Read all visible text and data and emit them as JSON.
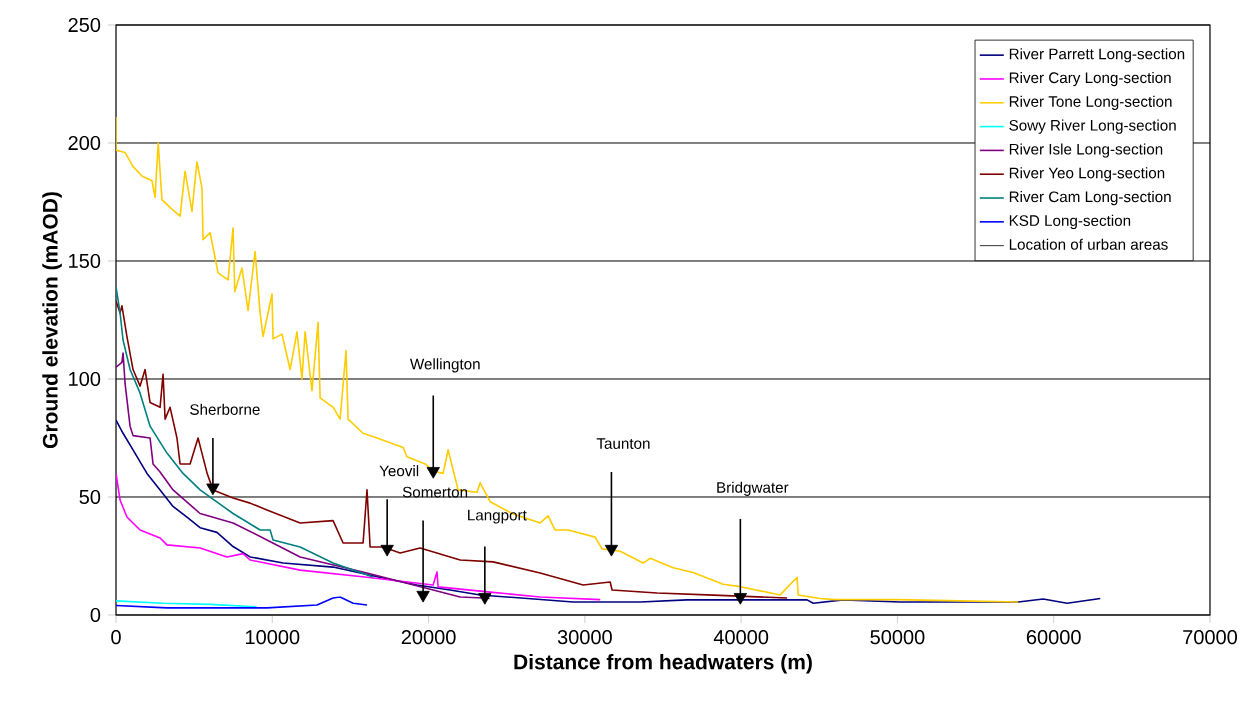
{
  "chart_data": {
    "type": "line",
    "xlabel": "Distance from headwaters (m)",
    "ylabel": "Ground elevation (mAOD)",
    "xlim": [
      0,
      70000
    ],
    "ylim": [
      0,
      250
    ],
    "xticks": [
      0,
      10000,
      20000,
      30000,
      40000,
      50000,
      60000,
      70000
    ],
    "yticks": [
      0,
      50,
      100,
      150,
      200,
      250
    ],
    "grid": "y",
    "legend": "top right",
    "marker": "none",
    "line_style": "solid",
    "series": [
      {
        "name": "River Parrett Long-section",
        "color": "#000080",
        "x": [
          0,
          450,
          1090,
          1980,
          2820,
          3650,
          4540,
          5380,
          6460,
          7490,
          8580,
          10690,
          13890,
          17090,
          19260,
          21380,
          23300,
          29250,
          33540,
          36540,
          39940,
          44220,
          44610,
          46530,
          50180,
          57730,
          59330,
          60860,
          62980
        ],
        "values": [
          82.6,
          77,
          70,
          60,
          53,
          46,
          41.5,
          37,
          35,
          29,
          24.6,
          22,
          20.3,
          15.7,
          12.7,
          10.6,
          8.5,
          5.5,
          5.5,
          6.4,
          6.4,
          6.4,
          5,
          6.4,
          5.5,
          5.5,
          6.8,
          5,
          7
        ]
      },
      {
        "name": "River Cary Long-section",
        "color": "#ff00ff",
        "x": [
          0,
          260,
          700,
          1540,
          2820,
          3260,
          5380,
          7100,
          8130,
          8580,
          11780,
          16060,
          20290,
          20540,
          20610,
          23940,
          27140,
          30980
        ],
        "values": [
          60,
          48.7,
          41.5,
          36,
          32.6,
          29.7,
          28.4,
          24.6,
          26,
          23.3,
          19,
          16,
          12.7,
          18.2,
          11.9,
          9.7,
          7.6,
          6.5
        ]
      },
      {
        "name": "River Tone Long-section",
        "color": "#ffcc00",
        "x": [
          0,
          0,
          580,
          1090,
          1660,
          2300,
          2500,
          2700,
          2940,
          3580,
          4100,
          4420,
          4860,
          5180,
          5500,
          5570,
          6020,
          6530,
          7170,
          7490,
          7600,
          8060,
          8450,
          8900,
          9220,
          9410,
          9980,
          10050,
          10620,
          11140,
          11580,
          11900,
          12100,
          12540,
          12930,
          13060,
          13900,
          14340,
          14720,
          14850,
          15810,
          16700,
          18370,
          18620,
          19780,
          20290,
          20930,
          21250,
          21890,
          23100,
          23300,
          23940,
          25340,
          27140,
          27650,
          28100,
          28930,
          30660,
          31100,
          32260,
          33730,
          34180,
          35650,
          36930,
          38850,
          39940,
          42500,
          43580,
          43650,
          45060,
          46000,
          50000,
          54000,
          57730
        ],
        "values": [
          211,
          197,
          196,
          190,
          186,
          184,
          177,
          200,
          176,
          172,
          169,
          188,
          171,
          192,
          181,
          159,
          162,
          145,
          142,
          164,
          137,
          147,
          129,
          154,
          128,
          118,
          136,
          117,
          119,
          104,
          120,
          100,
          120,
          95,
          124,
          92,
          88,
          83,
          112,
          83,
          77,
          75,
          71,
          67,
          64,
          61,
          60,
          70,
          53,
          52,
          56,
          48,
          43,
          39,
          42,
          36,
          36,
          33,
          28,
          27,
          22,
          24,
          20,
          18,
          13,
          12,
          8.5,
          16,
          8.5,
          7,
          6.5,
          6.5,
          6,
          5.5
        ]
      },
      {
        "name": "Sowy River Long-section",
        "color": "#00ffff",
        "x": [
          0,
          3000,
          6000,
          9000
        ],
        "values": [
          6,
          5,
          4.5,
          3.5
        ]
      },
      {
        "name": "River Isle Long-section",
        "color": "#800080",
        "x": [
          0,
          380,
          450,
          580,
          900,
          1090,
          2180,
          2370,
          2820,
          3650,
          5380,
          7490,
          9660,
          11780,
          16060,
          20290,
          22020,
          23490,
          23900
        ],
        "values": [
          105,
          107,
          111,
          98,
          80,
          76,
          75,
          64,
          60.6,
          53,
          43,
          39,
          31.8,
          24.6,
          17.8,
          10.6,
          7.6,
          7.2,
          7
        ]
      },
      {
        "name": "River Yeo Long-section",
        "color": "#800000",
        "x": [
          0,
          260,
          380,
          700,
          1090,
          1540,
          1860,
          2180,
          2820,
          3010,
          3140,
          3460,
          3900,
          4100,
          4740,
          5250,
          5830,
          6210,
          7490,
          8580,
          9660,
          11780,
          13890,
          14530,
          15810,
          16060,
          16260,
          17090,
          18180,
          19460,
          22020,
          24130,
          27140,
          29890,
          31620,
          31740,
          34620,
          37820,
          42940
        ],
        "values": [
          133,
          128,
          131,
          118,
          104,
          97,
          104,
          90,
          88,
          102,
          83,
          88,
          75,
          64,
          64,
          75,
          60,
          53,
          49.6,
          47.4,
          44.5,
          39,
          40,
          30.5,
          30.5,
          53,
          28.8,
          28.8,
          26.3,
          28.4,
          23.3,
          22.5,
          17.8,
          12.7,
          14,
          10.6,
          9.3,
          8.5,
          7.2
        ]
      },
      {
        "name": "River Cam Long-section",
        "color": "#008080",
        "x": [
          0,
          260,
          450,
          900,
          1540,
          2180,
          3260,
          4290,
          5380,
          7490,
          9220,
          9860,
          10050,
          11780,
          13890,
          16450
        ],
        "values": [
          139,
          128,
          116.5,
          104,
          94,
          80,
          68.6,
          60,
          53,
          43,
          36,
          36,
          31.8,
          28.8,
          22,
          16.1
        ]
      },
      {
        "name": "KSD Long-section",
        "color": "#0000ff",
        "x": [
          0,
          3260,
          9660,
          12860,
          13890,
          14340,
          15170,
          16060
        ],
        "values": [
          4,
          3,
          3,
          4.2,
          7.2,
          7.6,
          5,
          4.2
        ]
      },
      {
        "name": "Location of urban areas",
        "color": "#000000",
        "type": "scatter",
        "marker": "triangle",
        "x": [
          6200,
          20300,
          17350,
          19650,
          23600,
          31700,
          39950
        ],
        "values": [
          54,
          61,
          28,
          8.5,
          7.6,
          28,
          7.6
        ],
        "errors": [
          [
            54,
            75
          ],
          [
            61,
            93
          ],
          [
            28,
            49
          ],
          [
            8.5,
            40
          ],
          [
            7.6,
            29
          ],
          [
            28,
            60.6
          ],
          [
            7.6,
            40.7
          ]
        ]
      }
    ],
    "annotations": [
      "Sherborne",
      "Wellington",
      "Yeovil",
      "Somerton",
      "Langport",
      "Taunton",
      "Bridgwater"
    ]
  }
}
